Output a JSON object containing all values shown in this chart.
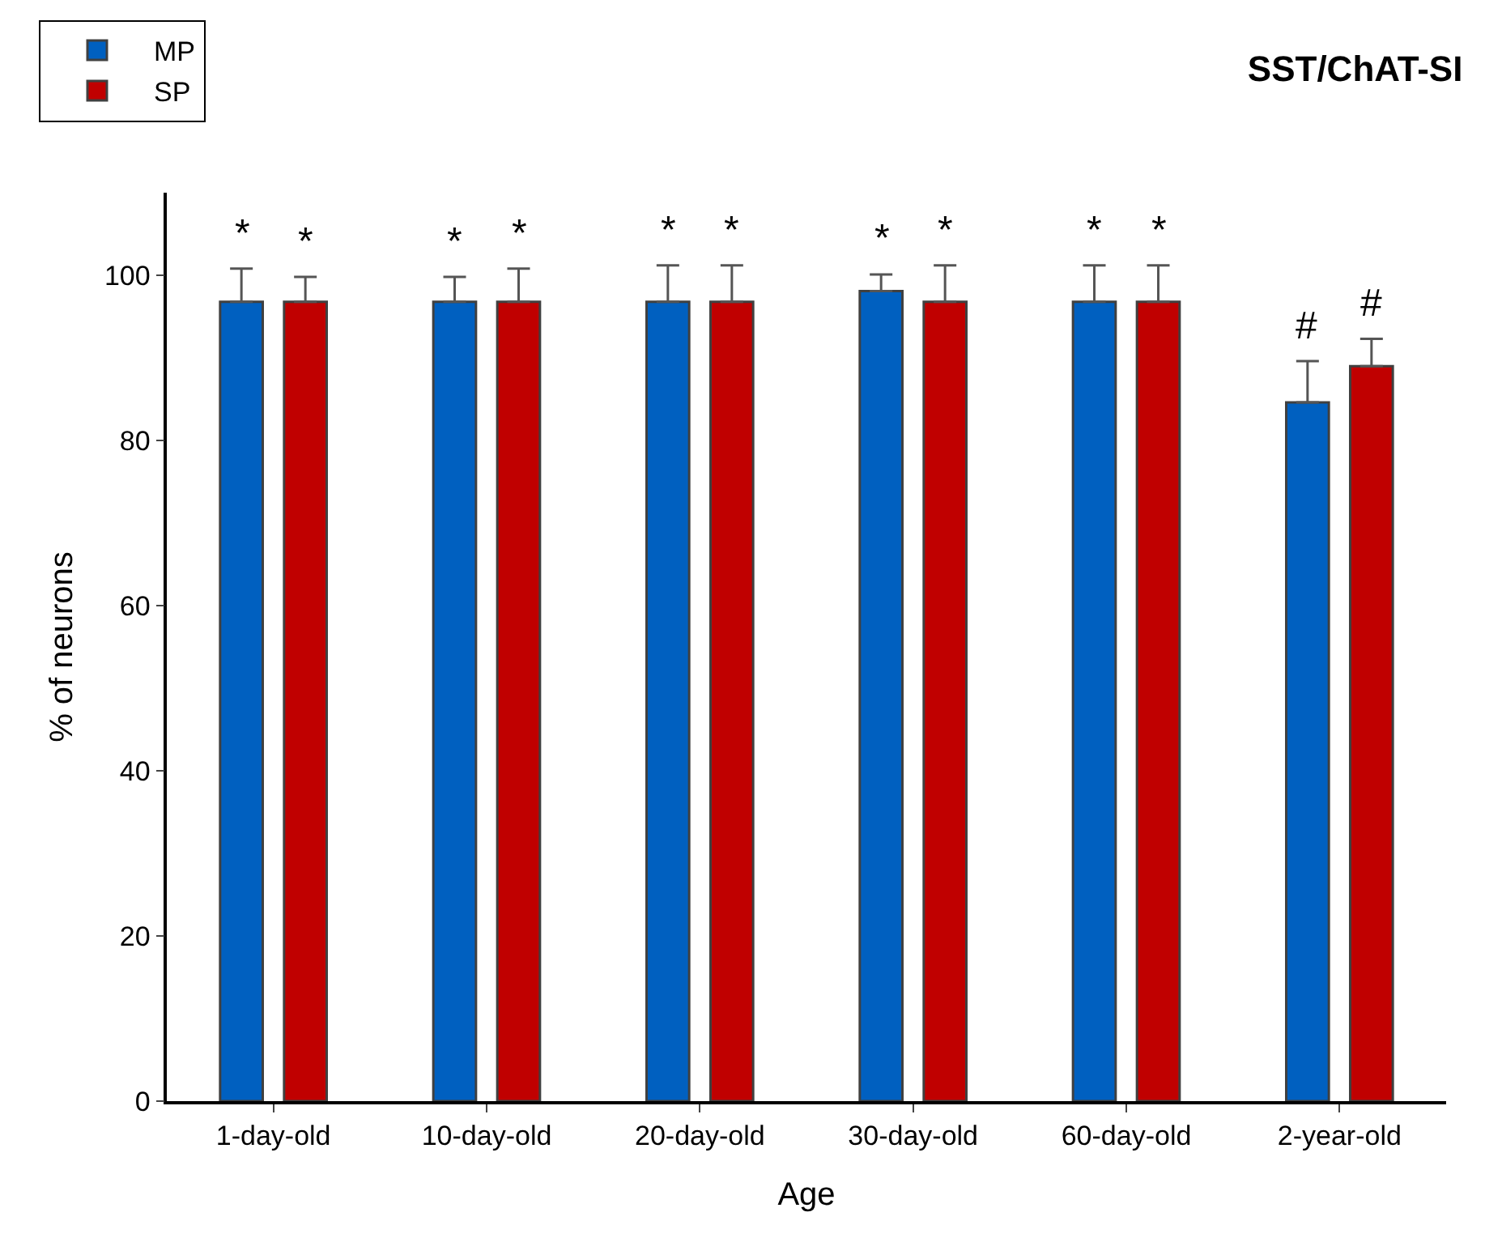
{
  "chart_data": {
    "type": "bar",
    "title": "SST/ChAT-SI",
    "xlabel": "Age",
    "ylabel": "% of neurons",
    "categories": [
      "1-day-old",
      "10-day-old",
      "20-day-old",
      "30-day-old",
      "60-day-old",
      "2-year-old"
    ],
    "series": [
      {
        "name": "MP",
        "color": "#0060c0",
        "values": [
          96.8,
          96.8,
          96.8,
          98.1,
          96.8,
          84.6
        ],
        "errors": [
          4,
          3,
          4.4,
          2,
          4.4,
          5
        ],
        "value_labels": [
          "*",
          "*",
          "*",
          "*",
          "*",
          "#"
        ]
      },
      {
        "name": "SP",
        "color": "#c00000",
        "values": [
          96.8,
          96.8,
          96.8,
          96.8,
          96.8,
          89.0
        ],
        "errors": [
          3,
          4,
          4.4,
          4.4,
          4.4,
          3.3
        ],
        "value_labels": [
          "*",
          "*",
          "*",
          "*",
          "*",
          "#"
        ]
      }
    ],
    "ylim": [
      0,
      110
    ],
    "yticks": [
      0,
      20,
      40,
      60,
      80,
      100
    ],
    "grid": false,
    "legend": "top left"
  }
}
